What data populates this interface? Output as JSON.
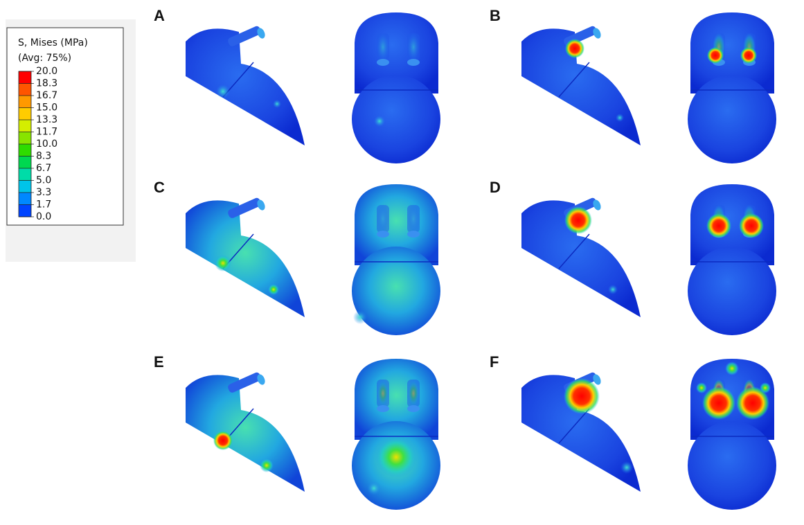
{
  "legend": {
    "title": "S, Mises (MPa)",
    "subtitle": "(Avg: 75%)",
    "labels": [
      "20.0",
      "18.3",
      "16.7",
      "15.0",
      "13.3",
      "11.7",
      "10.0",
      "8.3",
      "6.7",
      "5.0",
      "3.3",
      "1.7",
      "0.0"
    ]
  },
  "panels": [
    {
      "label": "A"
    },
    {
      "label": "B"
    },
    {
      "label": "C"
    },
    {
      "label": "D"
    },
    {
      "label": "E"
    },
    {
      "label": "F"
    }
  ]
}
